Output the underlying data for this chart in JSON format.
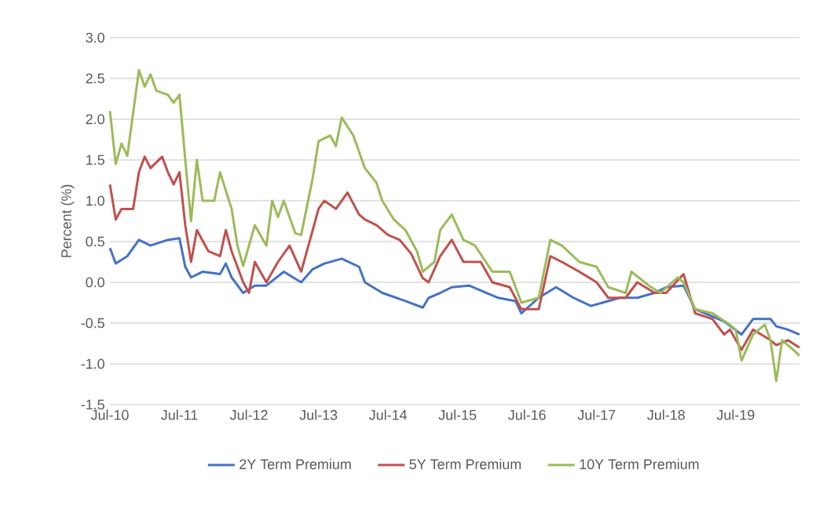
{
  "chart_data": {
    "type": "line",
    "ylabel": "Percent (%)",
    "ylim": [
      -1.5,
      3
    ],
    "yticks": [
      {
        "value": -1.5,
        "label": "-1.5"
      },
      {
        "value": -1,
        "label": "-1.0"
      },
      {
        "value": -0.5,
        "label": "-0.5"
      },
      {
        "value": 0,
        "label": "0.0"
      },
      {
        "value": 0.5,
        "label": "0.5"
      },
      {
        "value": 1,
        "label": "1.0"
      },
      {
        "value": 1.5,
        "label": "1.5"
      },
      {
        "value": 2,
        "label": "2.0"
      },
      {
        "value": 2.5,
        "label": "2.5"
      },
      {
        "value": 3,
        "label": "3.0"
      }
    ],
    "xlim": [
      "2010-07",
      "2020-06"
    ],
    "xticks": [
      {
        "value": "2010-07",
        "label": "Jul-10"
      },
      {
        "value": "2011-07",
        "label": "Jul-11"
      },
      {
        "value": "2012-07",
        "label": "Jul-12"
      },
      {
        "value": "2013-07",
        "label": "Jul-13"
      },
      {
        "value": "2014-07",
        "label": "Jul-14"
      },
      {
        "value": "2015-07",
        "label": "Jul-15"
      },
      {
        "value": "2016-07",
        "label": "Jul-16"
      },
      {
        "value": "2017-07",
        "label": "Jul-17"
      },
      {
        "value": "2018-07",
        "label": "Jul-18"
      },
      {
        "value": "2019-07",
        "label": "Jul-19"
      }
    ],
    "grid": "y",
    "legend": "bottom",
    "line_style": "solid",
    "marker": "none",
    "series": [
      {
        "name": "2Y Term Premium",
        "color": "#4472c4",
        "x": [
          "2010-07",
          "2010-08",
          "2010-10",
          "2010-12",
          "2011-02",
          "2011-05",
          "2011-07",
          "2011-08",
          "2011-09",
          "2011-11",
          "2012-02",
          "2012-03",
          "2012-04",
          "2012-06",
          "2012-08",
          "2012-10",
          "2013-01",
          "2013-04",
          "2013-06",
          "2013-08",
          "2013-11",
          "2014-02",
          "2014-03",
          "2014-06",
          "2014-10",
          "2015-01",
          "2015-02",
          "2015-04",
          "2015-06",
          "2015-09",
          "2015-12",
          "2016-02",
          "2016-05",
          "2016-06",
          "2016-09",
          "2016-12",
          "2017-03",
          "2017-06",
          "2017-08",
          "2017-11",
          "2018-02",
          "2018-05",
          "2018-07",
          "2018-10",
          "2018-12",
          "2019-03",
          "2019-05",
          "2019-08",
          "2019-10",
          "2020-01",
          "2020-02",
          "2020-04",
          "2020-06"
        ],
        "values": [
          0.42,
          0.23,
          0.32,
          0.52,
          0.45,
          0.52,
          0.54,
          0.19,
          0.06,
          0.13,
          0.1,
          0.23,
          0.06,
          -0.13,
          -0.04,
          -0.04,
          0.13,
          0,
          0.16,
          0.23,
          0.29,
          0.19,
          0,
          -0.13,
          -0.23,
          -0.31,
          -0.19,
          -0.13,
          -0.06,
          -0.04,
          -0.13,
          -0.19,
          -0.23,
          -0.38,
          -0.19,
          -0.06,
          -0.19,
          -0.29,
          -0.25,
          -0.19,
          -0.19,
          -0.13,
          -0.06,
          -0.04,
          -0.33,
          -0.42,
          -0.48,
          -0.64,
          -0.45,
          -0.45,
          -0.54,
          -0.58,
          -0.64
        ]
      },
      {
        "name": "5Y Term Premium",
        "color": "#c0504d",
        "x": [
          "2010-07",
          "2010-08",
          "2010-09",
          "2010-11",
          "2010-12",
          "2011-01",
          "2011-02",
          "2011-04",
          "2011-05",
          "2011-06",
          "2011-07",
          "2011-08",
          "2011-09",
          "2011-10",
          "2011-12",
          "2012-02",
          "2012-03",
          "2012-04",
          "2012-06",
          "2012-07",
          "2012-08",
          "2012-10",
          "2012-12",
          "2013-02",
          "2013-04",
          "2013-06",
          "2013-07",
          "2013-08",
          "2013-10",
          "2013-12",
          "2014-02",
          "2014-03",
          "2014-05",
          "2014-07",
          "2014-09",
          "2014-11",
          "2015-01",
          "2015-02",
          "2015-04",
          "2015-06",
          "2015-08",
          "2015-11",
          "2016-01",
          "2016-04",
          "2016-06",
          "2016-09",
          "2016-11",
          "2017-01",
          "2017-04",
          "2017-07",
          "2017-09",
          "2017-12",
          "2018-02",
          "2018-05",
          "2018-07",
          "2018-10",
          "2018-12",
          "2019-03",
          "2019-05",
          "2019-06",
          "2019-08",
          "2019-10",
          "2020-01",
          "2020-02",
          "2020-04",
          "2020-06"
        ],
        "values": [
          1.2,
          0.77,
          0.9,
          0.9,
          1.35,
          1.54,
          1.4,
          1.54,
          1.35,
          1.2,
          1.35,
          0.7,
          0.25,
          0.64,
          0.38,
          0.32,
          0.64,
          0.38,
          0,
          -0.13,
          0.25,
          0,
          0.25,
          0.45,
          0.13,
          0.64,
          0.9,
          1.0,
          0.9,
          1.1,
          0.83,
          0.77,
          0.7,
          0.58,
          0.52,
          0.35,
          0.05,
          0,
          0.32,
          0.52,
          0.25,
          0.25,
          0,
          -0.06,
          -0.33,
          -0.33,
          0.32,
          0.25,
          0.13,
          0,
          -0.19,
          -0.19,
          0,
          -0.13,
          -0.13,
          0.1,
          -0.38,
          -0.45,
          -0.64,
          -0.58,
          -0.83,
          -0.58,
          -0.71,
          -0.77,
          -0.71,
          -0.8
        ]
      },
      {
        "name": "10Y Term Premium",
        "color": "#9bbb59",
        "x": [
          "2010-07",
          "2010-08",
          "2010-09",
          "2010-10",
          "2010-12",
          "2011-01",
          "2011-02",
          "2011-03",
          "2011-05",
          "2011-06",
          "2011-07",
          "2011-08",
          "2011-09",
          "2011-10",
          "2011-11",
          "2012-01",
          "2012-02",
          "2012-04",
          "2012-05",
          "2012-06",
          "2012-08",
          "2012-10",
          "2012-11",
          "2012-12",
          "2013-01",
          "2013-03",
          "2013-04",
          "2013-06",
          "2013-07",
          "2013-09",
          "2013-10",
          "2013-11",
          "2014-01",
          "2014-03",
          "2014-05",
          "2014-06",
          "2014-08",
          "2014-10",
          "2014-12",
          "2015-01",
          "2015-03",
          "2015-04",
          "2015-06",
          "2015-08",
          "2015-10",
          "2016-01",
          "2016-04",
          "2016-06",
          "2016-09",
          "2016-11",
          "2017-01",
          "2017-04",
          "2017-07",
          "2017-09",
          "2017-12",
          "2018-01",
          "2018-04",
          "2018-06",
          "2018-09",
          "2018-10",
          "2018-12",
          "2019-03",
          "2019-06",
          "2019-07",
          "2019-08",
          "2019-10",
          "2019-12",
          "2020-01",
          "2020-02",
          "2020-03",
          "2020-05",
          "2020-06"
        ],
        "values": [
          2.1,
          1.45,
          1.7,
          1.55,
          2.6,
          2.4,
          2.55,
          2.35,
          2.3,
          2.2,
          2.3,
          1.5,
          0.75,
          1.5,
          1.0,
          1.0,
          1.35,
          0.9,
          0.45,
          0.2,
          0.7,
          0.45,
          1.0,
          0.8,
          1.0,
          0.6,
          0.58,
          1.28,
          1.73,
          1.8,
          1.67,
          2.02,
          1.8,
          1.4,
          1.22,
          1.0,
          0.77,
          0.64,
          0.38,
          0.13,
          0.25,
          0.64,
          0.83,
          0.52,
          0.45,
          0.13,
          0.13,
          -0.25,
          -0.19,
          0.52,
          0.45,
          0.25,
          0.19,
          -0.06,
          -0.13,
          0.13,
          -0.04,
          -0.13,
          0.06,
          0,
          -0.33,
          -0.38,
          -0.52,
          -0.58,
          -0.96,
          -0.64,
          -0.52,
          -0.71,
          -1.21,
          -0.71,
          -0.83,
          -0.9
        ]
      }
    ]
  }
}
